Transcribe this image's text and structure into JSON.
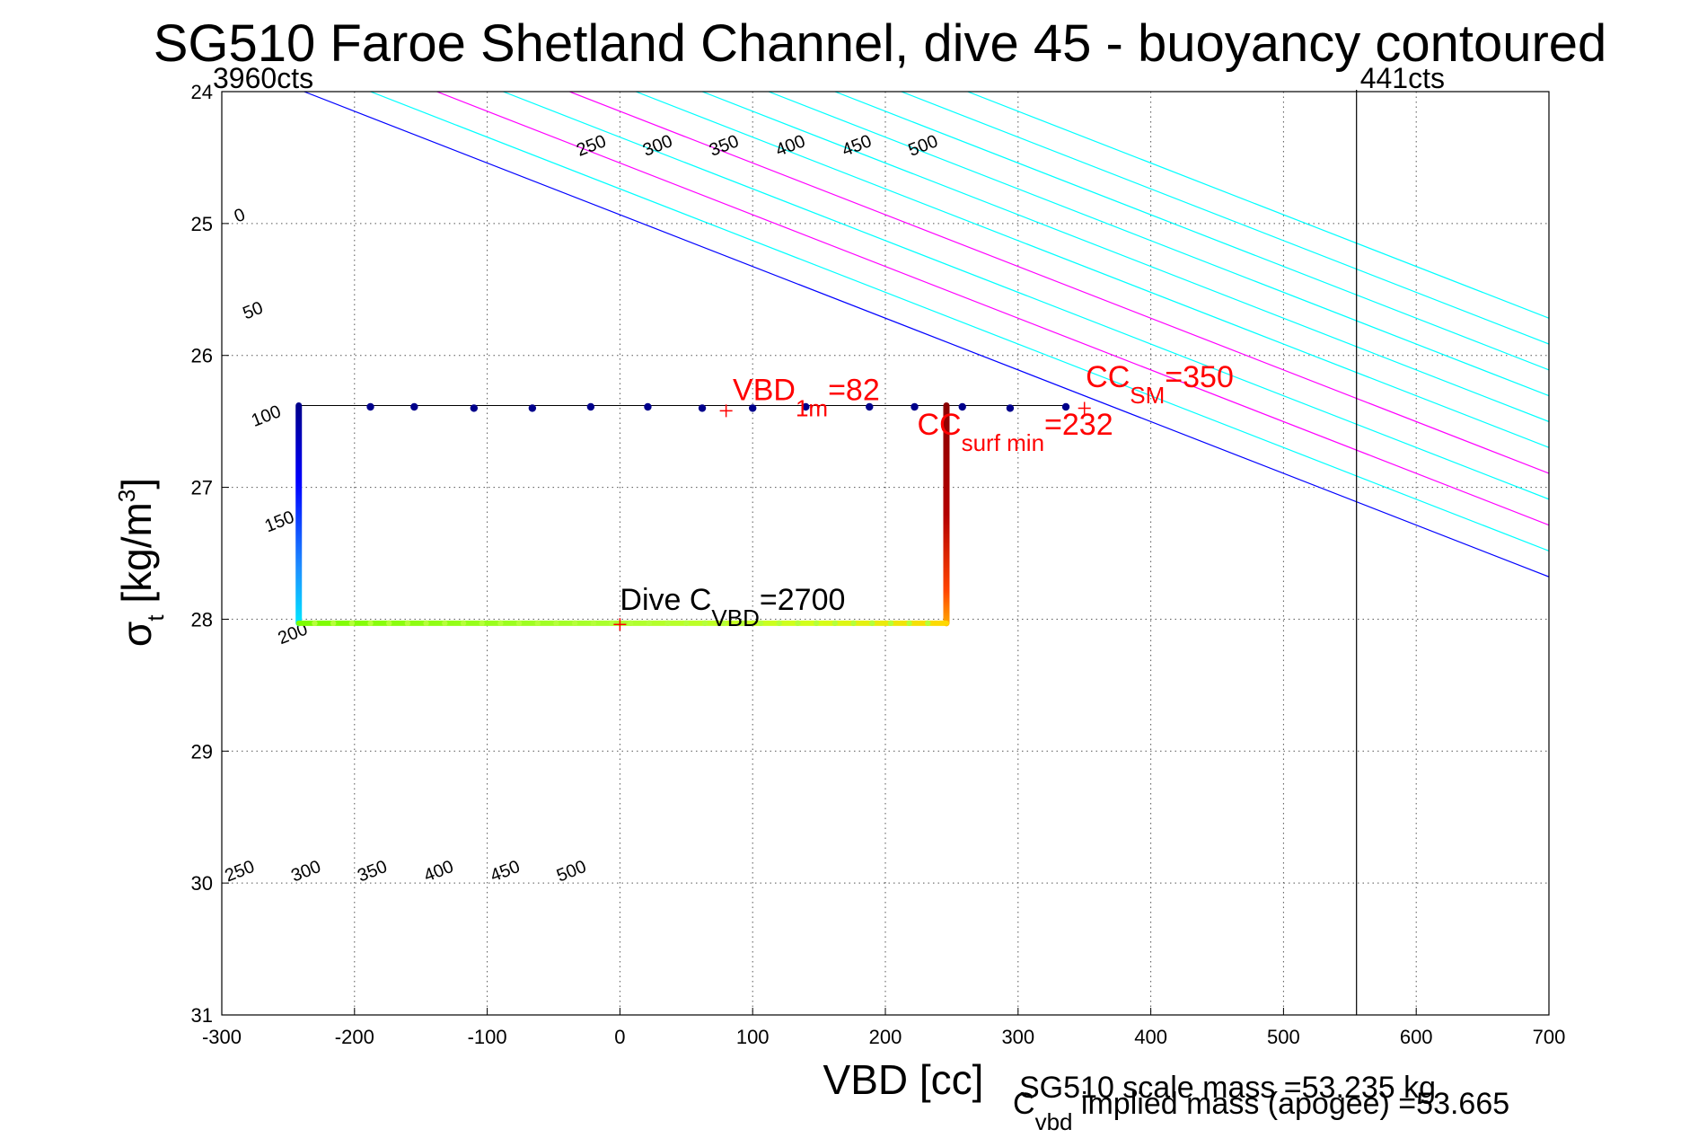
{
  "chart_data": {
    "type": "scatter",
    "title": "SG510 Faroe Shetland Channel, dive 45 - buoyancy contoured",
    "xlabel": "VBD [cc]",
    "ylabel": {
      "main": "σ",
      "sub": "t",
      "rest": " [kg/m",
      "sup": "3",
      "end": "]"
    },
    "xlim": [
      -300,
      700
    ],
    "ylim": [
      24,
      31
    ],
    "y_reversed": true,
    "x_ticks": [
      -300,
      -200,
      -100,
      0,
      100,
      200,
      300,
      400,
      500,
      600,
      700
    ],
    "y_ticks": [
      24,
      25,
      26,
      27,
      28,
      29,
      30,
      31
    ],
    "grid": true,
    "contour_slope_cc_per_sigma": 255,
    "contours": [
      {
        "value": 0,
        "intercept": -238,
        "color": "#0000ff"
      },
      {
        "value": 50,
        "intercept": -188,
        "color": "#00ffff"
      },
      {
        "value": 100,
        "intercept": -138,
        "color": "#ff00ff"
      },
      {
        "value": 150,
        "intercept": -88,
        "color": "#00ffff"
      },
      {
        "value": 200,
        "intercept": -38,
        "color": "#ff00ff"
      },
      {
        "value": 250,
        "intercept": 12,
        "color": "#00ffff"
      },
      {
        "value": 300,
        "intercept": 62,
        "color": "#00ffff"
      },
      {
        "value": 350,
        "intercept": 112,
        "color": "#00ffff"
      },
      {
        "value": 400,
        "intercept": 162,
        "color": "#00ffff"
      },
      {
        "value": 450,
        "intercept": 212,
        "color": "#00ffff"
      },
      {
        "value": 500,
        "intercept": 262,
        "color": "#00ffff"
      }
    ],
    "contour_labels": [
      {
        "text": "250",
        "x": -20,
        "y": 24.45
      },
      {
        "text": "300",
        "x": 30,
        "y": 24.45
      },
      {
        "text": "350",
        "x": 80,
        "y": 24.45
      },
      {
        "text": "400",
        "x": 130,
        "y": 24.45
      },
      {
        "text": "450",
        "x": 180,
        "y": 24.45
      },
      {
        "text": "500",
        "x": 230,
        "y": 24.45
      },
      {
        "text": "0",
        "x": -285,
        "y": 24.98
      },
      {
        "text": "50",
        "x": -275,
        "y": 25.7
      },
      {
        "text": "100",
        "x": -265,
        "y": 26.5
      },
      {
        "text": "150",
        "x": -255,
        "y": 27.3
      },
      {
        "text": "200",
        "x": -245,
        "y": 28.15
      },
      {
        "text": "250",
        "x": -285,
        "y": 29.95
      },
      {
        "text": "300",
        "x": -235,
        "y": 29.95
      },
      {
        "text": "350",
        "x": -185,
        "y": 29.95
      },
      {
        "text": "400",
        "x": -135,
        "y": 29.95
      },
      {
        "text": "450",
        "x": -85,
        "y": 29.95
      },
      {
        "text": "500",
        "x": -35,
        "y": 29.95
      }
    ],
    "vertical_lines": [
      {
        "x": 555,
        "color": "#000000"
      }
    ],
    "corner_labels": {
      "left": "3960cts",
      "right": "441cts"
    },
    "segments": [
      {
        "name": "surface",
        "x": [
          -242,
          336
        ],
        "sigma": 26.38,
        "color": "#00008b"
      },
      {
        "name": "dive-left",
        "x": -242,
        "sigma": [
          26.38,
          28.03
        ],
        "color": "#1e90ff"
      },
      {
        "name": "bottom",
        "x": [
          -242,
          246
        ],
        "sigma": 28.03,
        "color": "#adff2f"
      },
      {
        "name": "climb-right",
        "x": 246,
        "sigma": [
          26.38,
          28.03
        ],
        "color": "#b22222"
      }
    ],
    "surface_points": [
      {
        "x": -188,
        "sigma": 26.39
      },
      {
        "x": -155,
        "sigma": 26.39
      },
      {
        "x": -110,
        "sigma": 26.4
      },
      {
        "x": -66,
        "sigma": 26.4
      },
      {
        "x": -22,
        "sigma": 26.39
      },
      {
        "x": 21,
        "sigma": 26.39
      },
      {
        "x": 62,
        "sigma": 26.4
      },
      {
        "x": 100,
        "sigma": 26.4
      },
      {
        "x": 140,
        "sigma": 26.39
      },
      {
        "x": 188,
        "sigma": 26.39
      },
      {
        "x": 222,
        "sigma": 26.39
      },
      {
        "x": 258,
        "sigma": 26.39
      },
      {
        "x": 294,
        "sigma": 26.4
      },
      {
        "x": 336,
        "sigma": 26.39
      }
    ],
    "markers": [
      {
        "name": "vbd-1m",
        "x": 80,
        "sigma": 26.42,
        "color": "#ff0000"
      },
      {
        "name": "cc-sm",
        "x": 350,
        "sigma": 26.4,
        "color": "#ff0000"
      },
      {
        "name": "dive-c-vbd",
        "x": 0,
        "sigma": 28.04,
        "color": "#ff0000"
      }
    ],
    "annotations": {
      "vbd_1m": {
        "main": "VBD",
        "sub": "1m",
        "rest": "=82",
        "color": "#ff0000"
      },
      "cc_sm": {
        "main": "CC",
        "sub": "SM",
        "rest": "=350",
        "color": "#ff0000"
      },
      "cc_surf_min": {
        "main": "CC",
        "sub": "surf min",
        "rest": "=232",
        "color": "#ff0000"
      },
      "dive_c_vbd": {
        "main": "Dive C",
        "sub": "VBD",
        "rest": "=2700",
        "color": "#000000"
      }
    },
    "footer": {
      "scale_mass": "SG510 scale mass =53.235 kg",
      "implied_main": "C",
      "implied_sub": "vbd",
      "implied_rest": " implied mass (apogee) =53.665"
    }
  }
}
